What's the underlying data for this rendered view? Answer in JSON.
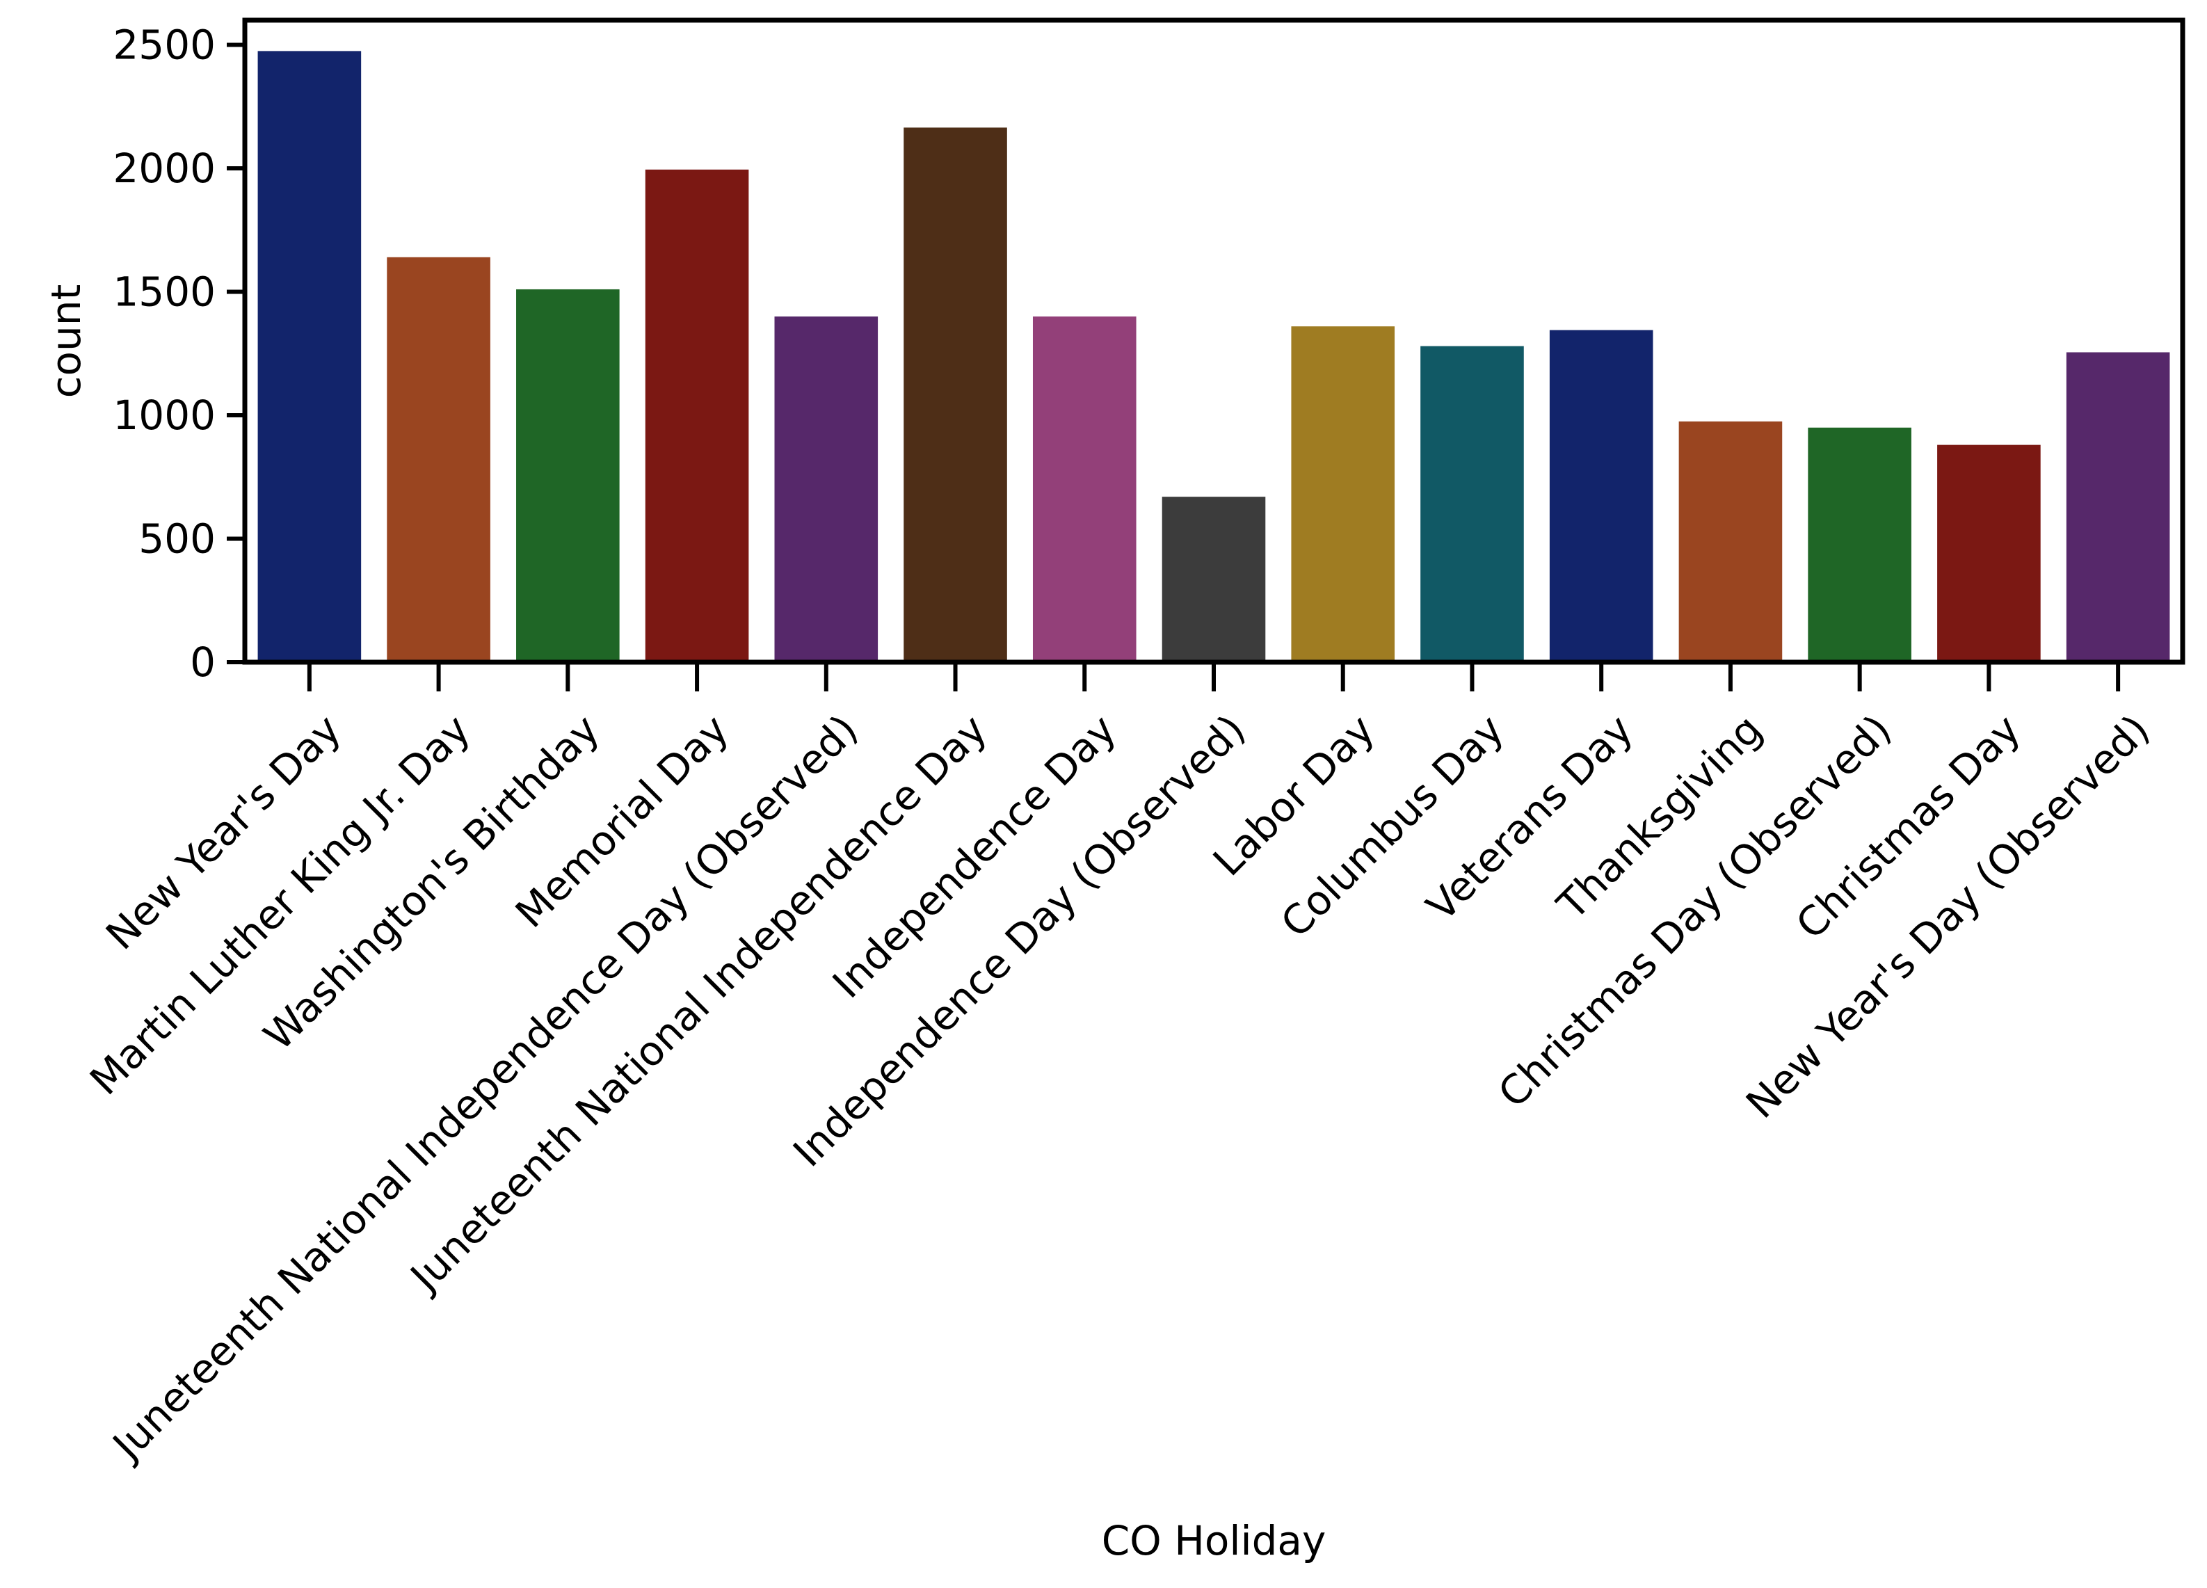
{
  "chart_data": {
    "type": "bar",
    "title": "",
    "xlabel": "CO Holiday",
    "ylabel": "count",
    "ylim": [
      0,
      2600
    ],
    "yticks": [
      0,
      500,
      1000,
      1500,
      2000,
      2500
    ],
    "grid": false,
    "legend": "none",
    "categories": [
      "New Year's Day",
      "Martin Luther King Jr. Day",
      "Washington's Birthday",
      "Memorial Day",
      "Juneteenth National Independence Day (Observed)",
      "Juneteenth National Independence Day",
      "Independence Day",
      "Independence Day (Observed)",
      "Labor Day",
      "Columbus Day",
      "Veterans Day",
      "Thanksgiving",
      "Christmas Day (Observed)",
      "Christmas Day",
      "New Year's Day (Observed)"
    ],
    "values": [
      2475,
      1640,
      1510,
      1995,
      1400,
      2165,
      1400,
      670,
      1360,
      1280,
      1345,
      975,
      950,
      880,
      1255
    ],
    "colors": [
      "#12246b",
      "#9a4520",
      "#1f6626",
      "#7b1813",
      "#56286a",
      "#4e2e17",
      "#934079",
      "#3c3c3c",
      "#9f7c22",
      "#115965",
      "#12246b",
      "#9a4520",
      "#1f6626",
      "#7b1813",
      "#56286a"
    ],
    "frame_color": "#000000"
  }
}
